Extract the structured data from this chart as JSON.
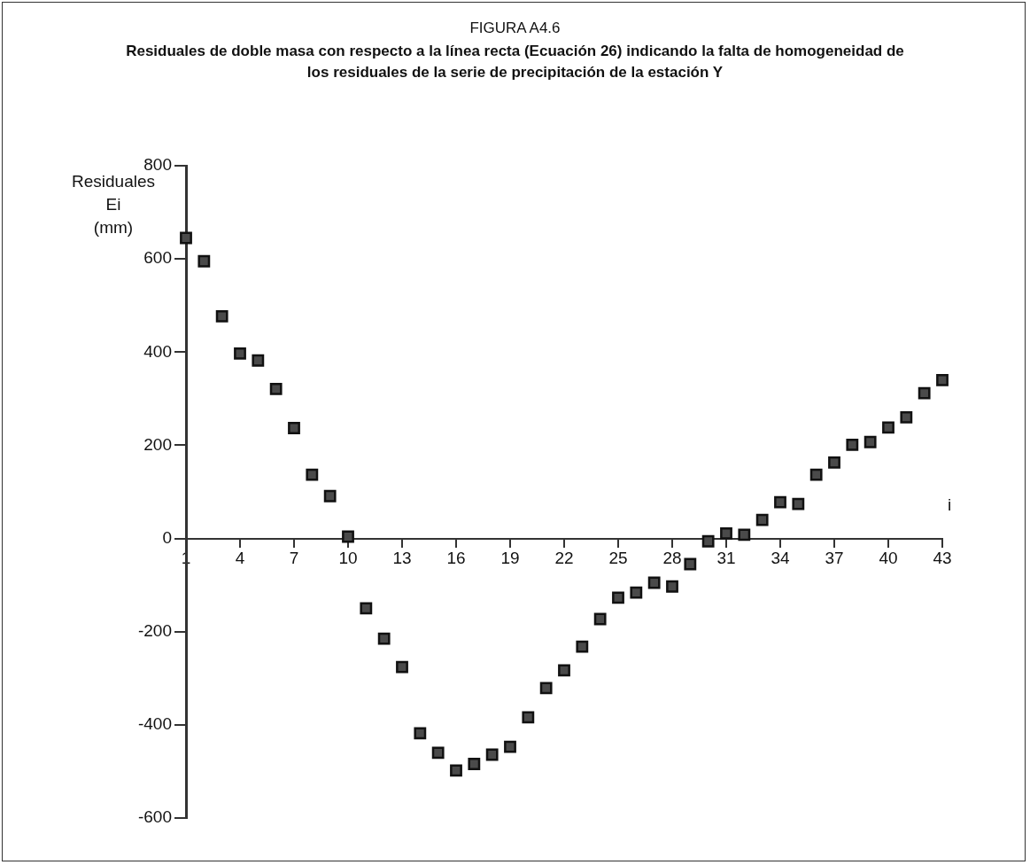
{
  "chart_data": {
    "type": "scatter",
    "title": "FIGURA A4.6",
    "subtitle": "Residuales de doble masa con respecto a la línea recta (Ecuación 26) indicando la falta de homogeneidad de los residuales de la serie de precipitación de la estación Y",
    "xlabel": "i",
    "ylabel": "Residuales\nEi\n(mm)",
    "x": [
      1,
      2,
      3,
      4,
      5,
      6,
      7,
      8,
      9,
      10,
      11,
      12,
      13,
      14,
      15,
      16,
      17,
      18,
      19,
      20,
      21,
      22,
      23,
      24,
      25,
      26,
      27,
      28,
      29,
      30,
      31,
      32,
      33,
      34,
      35,
      36,
      37,
      38,
      39,
      40,
      41,
      42,
      43
    ],
    "series": [
      {
        "color": "#4a4a4a",
        "values": [
          645,
          595,
          477,
          397,
          382,
          321,
          237,
          137,
          91,
          4,
          -150,
          -215,
          -276,
          -418,
          -460,
          -498,
          -484,
          -464,
          -447,
          -384,
          -321,
          -283,
          -232,
          -173,
          -127,
          -116,
          -95,
          -103,
          -55,
          -6,
          11,
          8,
          40,
          78,
          74,
          137,
          163,
          201,
          207,
          238,
          260,
          312,
          340
        ]
      }
    ],
    "xlim": [
      1,
      43
    ],
    "xticks": [
      1,
      4,
      7,
      10,
      13,
      16,
      19,
      22,
      25,
      28,
      31,
      34,
      37,
      40,
      43
    ],
    "ylim": [
      -600,
      800
    ],
    "yticks": [
      -600,
      -400,
      -200,
      0,
      200,
      400,
      600,
      800
    ],
    "grid": false,
    "legend": false,
    "marker": "square"
  }
}
